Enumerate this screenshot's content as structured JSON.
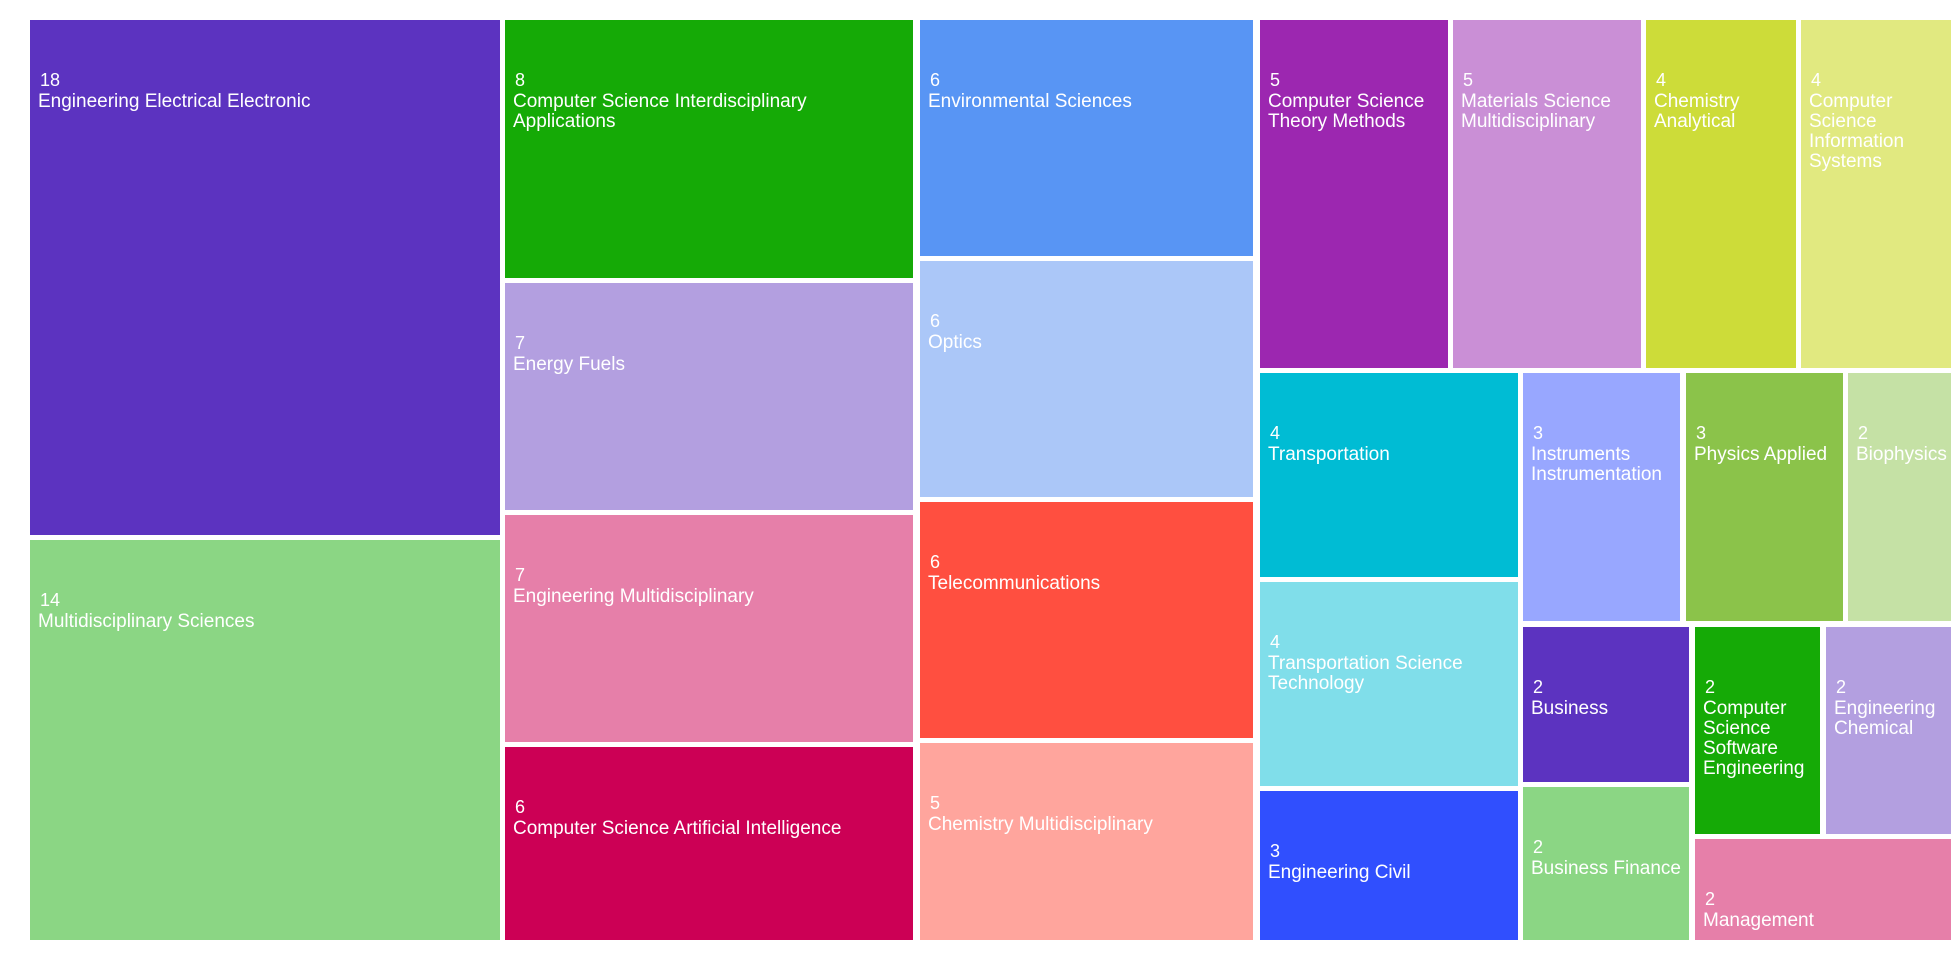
{
  "chart_data": {
    "type": "treemap",
    "title": "",
    "items": [
      {
        "label": "Engineering Electrical Electronic",
        "value": 18,
        "color": "#5c33c0"
      },
      {
        "label": "Multidisciplinary Sciences",
        "value": 14,
        "color": "#8bd684"
      },
      {
        "label": "Computer Science Interdisciplinary Applications",
        "value": 8,
        "color": "#15aa06"
      },
      {
        "label": "Energy Fuels",
        "value": 7,
        "color": "#b39fe0"
      },
      {
        "label": "Engineering Multidisciplinary",
        "value": 7,
        "color": "#e67fa9"
      },
      {
        "label": "Computer Science Artificial Intelligence",
        "value": 6,
        "color": "#cc0055"
      },
      {
        "label": "Environmental Sciences",
        "value": 6,
        "color": "#5895f4"
      },
      {
        "label": "Optics",
        "value": 6,
        "color": "#abc7f8"
      },
      {
        "label": "Telecommunications",
        "value": 6,
        "color": "#ff4f40"
      },
      {
        "label": "Chemistry Multidisciplinary",
        "value": 5,
        "color": "#ffa59d"
      },
      {
        "label": "Computer Science Theory Methods",
        "value": 5,
        "color": "#9c27b0"
      },
      {
        "label": "Materials Science Multidisciplinary",
        "value": 5,
        "color": "#ca8fd6"
      },
      {
        "label": "Chemistry Analytical",
        "value": 4,
        "color": "#cddc39"
      },
      {
        "label": "Computer Science Information Systems",
        "value": 4,
        "color": "#e1e980"
      },
      {
        "label": "Transportation",
        "value": 4,
        "color": "#00bcd4"
      },
      {
        "label": "Transportation Science Technology",
        "value": 4,
        "color": "#80deea"
      },
      {
        "label": "Engineering Civil",
        "value": 3,
        "color": "#304ffe"
      },
      {
        "label": "Instruments Instrumentation",
        "value": 3,
        "color": "#98a7ff"
      },
      {
        "label": "Physics Applied",
        "value": 3,
        "color": "#8bc34a"
      },
      {
        "label": "Biophysics",
        "value": 2,
        "color": "#c5e1a5"
      },
      {
        "label": "Business",
        "value": 2,
        "color": "#5c33c0"
      },
      {
        "label": "Business Finance",
        "value": 2,
        "color": "#8bd684"
      },
      {
        "label": "Computer Science Software Engineering",
        "value": 2,
        "color": "#15aa06"
      },
      {
        "label": "Engineering Chemical",
        "value": 2,
        "color": "#b39fe0"
      },
      {
        "label": "Management",
        "value": 2,
        "color": "#e67fa9"
      }
    ]
  }
}
